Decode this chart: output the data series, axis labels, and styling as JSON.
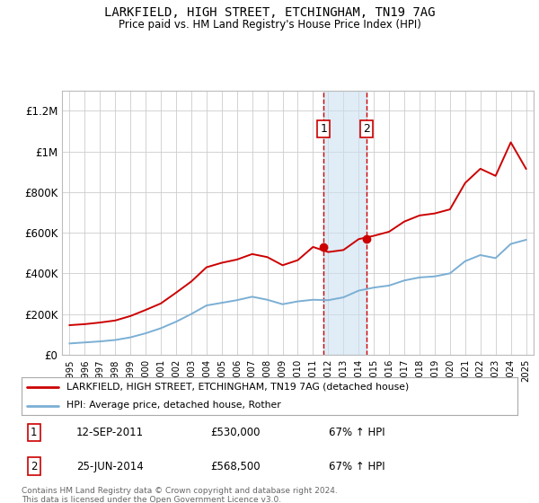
{
  "title": "LARKFIELD, HIGH STREET, ETCHINGHAM, TN19 7AG",
  "subtitle": "Price paid vs. HM Land Registry's House Price Index (HPI)",
  "ytick_labels": [
    "£0",
    "£200K",
    "£400K",
    "£600K",
    "£800K",
    "£1M",
    "£1.2M"
  ],
  "yticks": [
    0,
    200000,
    400000,
    600000,
    800000,
    1000000,
    1200000
  ],
  "ylim": [
    0,
    1300000
  ],
  "legend_line1": "LARKFIELD, HIGH STREET, ETCHINGHAM, TN19 7AG (detached house)",
  "legend_line2": "HPI: Average price, detached house, Rother",
  "annotation1_date": "12-SEP-2011",
  "annotation1_price": "£530,000",
  "annotation1_hpi": "67% ↑ HPI",
  "annotation2_date": "25-JUN-2014",
  "annotation2_price": "£568,500",
  "annotation2_hpi": "67% ↑ HPI",
  "footnote": "Contains HM Land Registry data © Crown copyright and database right 2024.\nThis data is licensed under the Open Government Licence v3.0.",
  "line1_color": "#cc0000",
  "line2_color": "#7bafd4",
  "vline_color": "#cc0000",
  "shade_color": "#cce0f0",
  "marker_color": "#cc0000",
  "annotation_box_color": "#cc0000",
  "grid_color": "#cccccc",
  "hpi_years": [
    1995,
    1996,
    1997,
    1998,
    1999,
    2000,
    2001,
    2002,
    2003,
    2004,
    2005,
    2006,
    2007,
    2008,
    2009,
    2010,
    2011,
    2012,
    2013,
    2014,
    2015,
    2016,
    2017,
    2018,
    2019,
    2020,
    2021,
    2022,
    2023,
    2024,
    2025
  ],
  "hpi_values": [
    55000,
    60000,
    65000,
    72000,
    85000,
    105000,
    130000,
    162000,
    200000,
    242000,
    255000,
    268000,
    285000,
    270000,
    248000,
    262000,
    270000,
    268000,
    282000,
    315000,
    330000,
    340000,
    365000,
    380000,
    385000,
    400000,
    460000,
    490000,
    475000,
    545000,
    565000
  ],
  "property_years": [
    1995,
    1996,
    1997,
    1998,
    1999,
    2000,
    2001,
    2002,
    2003,
    2004,
    2005,
    2006,
    2007,
    2008,
    2009,
    2010,
    2011,
    2012,
    2013,
    2014,
    2015,
    2016,
    2017,
    2018,
    2019,
    2020,
    2021,
    2022,
    2023,
    2024,
    2025
  ],
  "property_values": [
    145000,
    150000,
    158000,
    168000,
    190000,
    220000,
    252000,
    305000,
    360000,
    430000,
    452000,
    468000,
    495000,
    480000,
    440000,
    465000,
    530000,
    505000,
    515000,
    568500,
    585000,
    605000,
    655000,
    685000,
    695000,
    715000,
    845000,
    915000,
    880000,
    1045000,
    915000
  ],
  "sale1_year": 2011.7,
  "sale1_price": 530000,
  "sale2_year": 2014.5,
  "sale2_price": 568500,
  "xmin": 1994.5,
  "xmax": 2025.5
}
